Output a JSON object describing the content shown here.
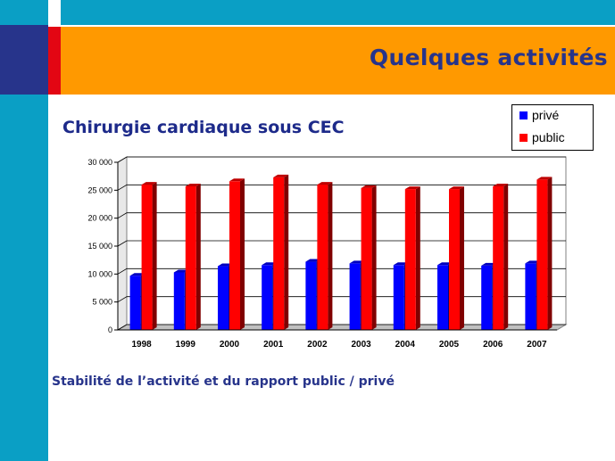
{
  "slide": {
    "title": "Quelques activités",
    "caption": "Stabilité de l’activité et du rapport public /  privé"
  },
  "colors": {
    "teal": "#0a9fc5",
    "navy": "#27348b",
    "red": "#e30613",
    "orange": "#ff9900",
    "series_prive": "#0000ff",
    "series_public": "#ff0000"
  },
  "chart_data": {
    "type": "bar",
    "title": "Chirurgie cardiaque sous CEC",
    "categories": [
      "1998",
      "1999",
      "2000",
      "2001",
      "2002",
      "2003",
      "2004",
      "2005",
      "2006",
      "2007"
    ],
    "series": [
      {
        "name": "privé",
        "color": "#0000ff",
        "values": [
          9700,
          10300,
          11400,
          11600,
          12200,
          11900,
          11600,
          11600,
          11500,
          11900
        ]
      },
      {
        "name": "public",
        "color": "#ff0000",
        "values": [
          26000,
          25700,
          26600,
          27300,
          26000,
          25400,
          25200,
          25200,
          25700,
          26900
        ]
      }
    ],
    "ylim": [
      0,
      30000
    ],
    "yticks": [
      0,
      5000,
      10000,
      15000,
      20000,
      25000,
      30000
    ],
    "ytick_labels": [
      "0",
      "5 000",
      "10 000",
      "15 000",
      "20 000",
      "25 000",
      "30 000"
    ],
    "grid": true,
    "legend_position": "top-right",
    "style": "3d"
  }
}
